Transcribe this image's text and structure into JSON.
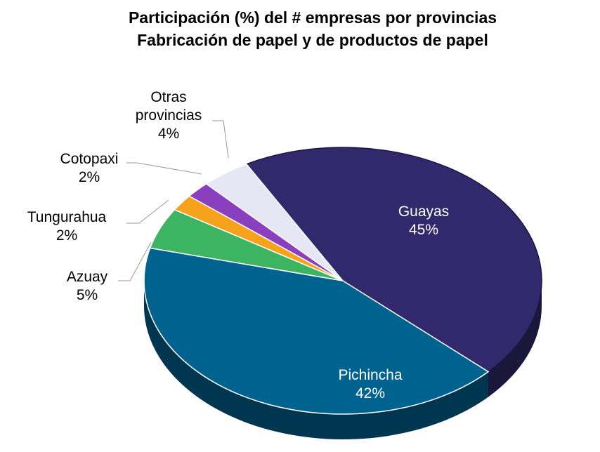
{
  "chart_data": {
    "type": "pie",
    "title": "Participación (%) del # empresas por provincias",
    "subtitle": "Fabricación de papel y de productos de papel",
    "categories": [
      "Guayas",
      "Pichincha",
      "Azuay",
      "Tungurahua",
      "Cotopaxi",
      "Otras provincias"
    ],
    "values": [
      45,
      42,
      5,
      2,
      2,
      4
    ],
    "value_labels": [
      "45%",
      "42%",
      "5%",
      "2%",
      "2%",
      "4%"
    ],
    "colors": [
      "#31296b",
      "#00628f",
      "#3cb462",
      "#f7a21b",
      "#8a3fbf",
      "#e6e6f5"
    ]
  }
}
